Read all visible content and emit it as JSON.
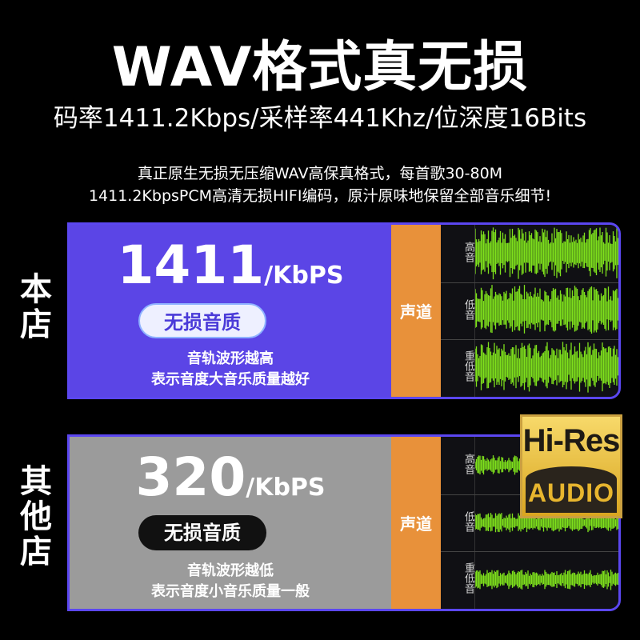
{
  "header": {
    "title": "WAV格式真无损",
    "spec": "码率1411.2Kbps/采样率441Khz/位深度16Bits",
    "desc_line1": "真正原生无损无压缩WAV高保真格式，每首歌30-80M",
    "desc_line2": "1411.2KbpsPCM高清无损HIFI编码，原汁原味地保留全部音乐细节!"
  },
  "ours": {
    "side_label": "本店",
    "bitrate": "1411",
    "unit": "/KbPS",
    "badge": "无损音质",
    "note_line1": "音轨波形越高",
    "note_line2": "表示音度大音乐质量越好",
    "channel": "声道",
    "bg_color": "#5b45e6",
    "tracks": [
      {
        "label": "高音"
      },
      {
        "label": "低音"
      },
      {
        "label": "重低音"
      }
    ]
  },
  "others": {
    "side_label": "其他店",
    "bitrate": "320",
    "unit": "/KbPS",
    "badge": "无损音质",
    "note_line1": "音轨波形越低",
    "note_line2": "表示音度小音乐质量一般",
    "channel": "声道",
    "bg_color": "#9b9b9b",
    "tracks": [
      {
        "label": "高音"
      },
      {
        "label": "低音"
      },
      {
        "label": "重低音"
      }
    ]
  },
  "logo": {
    "top": "Hi-Res",
    "bottom": "AUDIO"
  },
  "colors": {
    "accent": "#5b47f0",
    "orange": "#e8913a",
    "wave": "#7ee01c"
  }
}
